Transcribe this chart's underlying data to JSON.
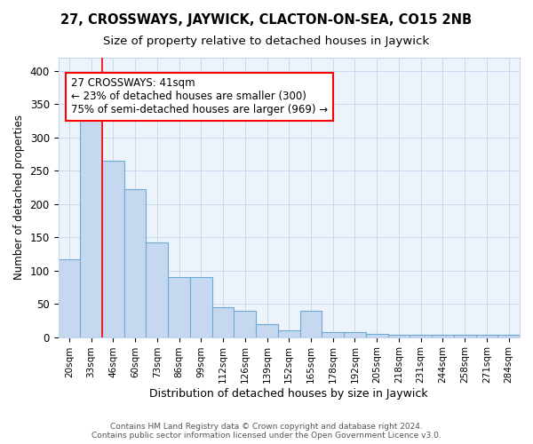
{
  "title": "27, CROSSWAYS, JAYWICK, CLACTON-ON-SEA, CO15 2NB",
  "subtitle": "Size of property relative to detached houses in Jaywick",
  "xlabel": "Distribution of detached houses by size in Jaywick",
  "ylabel": "Number of detached properties",
  "categories": [
    "20sqm",
    "33sqm",
    "46sqm",
    "60sqm",
    "73sqm",
    "86sqm",
    "99sqm",
    "112sqm",
    "126sqm",
    "139sqm",
    "152sqm",
    "165sqm",
    "178sqm",
    "192sqm",
    "205sqm",
    "218sqm",
    "231sqm",
    "244sqm",
    "258sqm",
    "271sqm",
    "284sqm"
  ],
  "values": [
    117,
    330,
    265,
    222,
    142,
    90,
    90,
    45,
    40,
    20,
    10,
    40,
    8,
    8,
    5,
    3,
    3,
    3,
    3,
    3,
    3
  ],
  "bar_color": "#c5d8f0",
  "bar_edge_color": "#6aaad4",
  "property_line_x": 1.5,
  "annotation_text": "27 CROSSWAYS: 41sqm\n← 23% of detached houses are smaller (300)\n75% of semi-detached houses are larger (969) →",
  "annotation_box_color": "white",
  "annotation_box_edge_color": "red",
  "red_line_color": "red",
  "ylim": [
    0,
    420
  ],
  "yticks": [
    0,
    50,
    100,
    150,
    200,
    250,
    300,
    350,
    400
  ],
  "grid_color": "#c8d8ec",
  "background_color": "white",
  "footer_text": "Contains HM Land Registry data © Crown copyright and database right 2024.\nContains public sector information licensed under the Open Government Licence v3.0.",
  "title_fontsize": 10.5,
  "subtitle_fontsize": 9.5,
  "xlabel_fontsize": 9,
  "ylabel_fontsize": 8.5,
  "annot_fontsize": 8.5
}
